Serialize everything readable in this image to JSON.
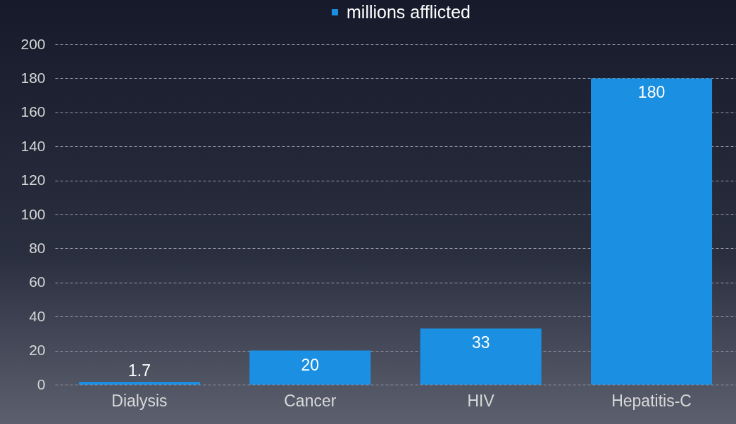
{
  "chart_data": {
    "type": "bar",
    "categories": [
      "Dialysis",
      "Cancer",
      "HIV",
      "Hepatitis-C"
    ],
    "series": [
      {
        "name": "millions afflicted",
        "color": "#1b8fe2",
        "values": [
          1.7,
          20,
          33,
          180
        ]
      }
    ],
    "ylim": [
      0,
      200
    ],
    "yticks": [
      0,
      20,
      40,
      60,
      80,
      100,
      120,
      140,
      160,
      180,
      200
    ],
    "grid": "y",
    "legend": "top",
    "data_labels": true
  }
}
